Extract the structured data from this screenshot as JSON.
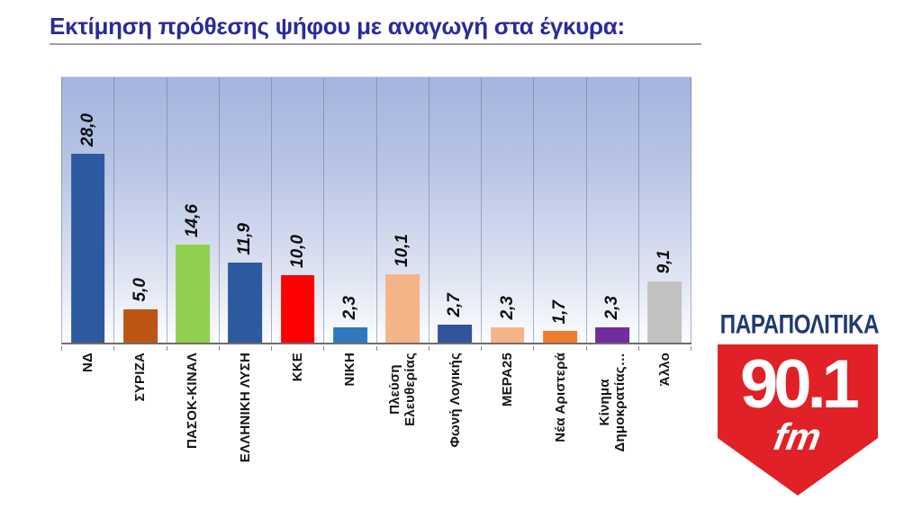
{
  "title": "Εκτίμηση πρόθεσης ψήφου με αναγωγή στα έγκυρα:",
  "chart_data": {
    "type": "bar",
    "title": "Εκτίμηση πρόθεσης ψήφου με αναγωγή στα έγκυρα:",
    "categories": [
      "ΝΔ",
      "ΣΥΡΙΖΑ",
      "ΠΑΣΟΚ-ΚΙΝΑΛ",
      "ΕΛΛΗΝΙΚΗ ΛΥΣΗ",
      "ΚΚΕ",
      "ΝΙΚΗ",
      "Πλεύση\nΕλευθερίας",
      "Φωνή Λογικής",
      "ΜΕΡΑ25",
      "Νέα Αριστερά",
      "Κίνημα\nΔημοκρατίας…",
      "Άλλο"
    ],
    "values": [
      28.0,
      5.0,
      14.6,
      11.9,
      10.0,
      2.3,
      10.1,
      2.7,
      2.3,
      1.7,
      2.3,
      9.1
    ],
    "value_labels": [
      "28,0",
      "5,0",
      "14,6",
      "11,9",
      "10,0",
      "2,3",
      "10,1",
      "2,7",
      "2,3",
      "1,7",
      "2,3",
      "9,1"
    ],
    "bar_colors": [
      "#2d5a9e",
      "#bd5513",
      "#8fd04e",
      "#2d5a9e",
      "#fe0000",
      "#2e79be",
      "#f5b488",
      "#31549b",
      "#f5b488",
      "#ec7d2d",
      "#6f2da0",
      "#c2c2c2"
    ],
    "xlabel": "",
    "ylabel": "",
    "ylim": [
      0,
      40
    ],
    "grid": "vertical column separators only, no horizontal gridlines, no visible y-axis",
    "legend_position": "none",
    "plot_background": "light blue gradient fading to white at the bottom",
    "value_label_style": "bold italic, rotated 90° counterclockwise above each bar",
    "category_label_style": "bold black, rotated 90° counterclockwise below axis"
  },
  "logo": {
    "brand": "ΠΑΡΑΠΟΛΙΤΙΚΑ",
    "frequency": "90.1",
    "band": "fm",
    "shield_color": "#e02127",
    "brand_color": "#203a75",
    "text_color": "#ffffff"
  }
}
